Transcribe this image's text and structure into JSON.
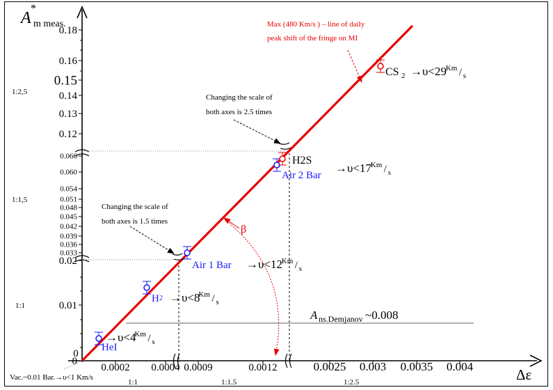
{
  "chart_data": {
    "type": "scatter",
    "title": "",
    "y_axis_label": {
      "main": "A",
      "sup": "*",
      "sub": "m meas."
    },
    "x_axis_label": "Δε",
    "y_ticks": [
      {
        "label": "0",
        "size": "small"
      },
      {
        "label": "0.01",
        "size": "small"
      },
      {
        "label": "0.02",
        "size": "small"
      },
      {
        "label": "0.033",
        "size": "tiny"
      },
      {
        "label": "0.036",
        "size": "tiny"
      },
      {
        "label": "0.039",
        "size": "tiny"
      },
      {
        "label": "0.042",
        "size": "tiny"
      },
      {
        "label": "0.045",
        "size": "tiny"
      },
      {
        "label": "0.048",
        "size": "tiny"
      },
      {
        "label": "0.051",
        "size": "tiny"
      },
      {
        "label": "0.054",
        "size": "tiny"
      },
      {
        "label": "0.060",
        "size": "tiny"
      },
      {
        "label": "0.066",
        "size": "tiny"
      },
      {
        "label": "0.12",
        "size": "small"
      },
      {
        "label": "0.13",
        "size": "small"
      },
      {
        "label": "0.14",
        "size": "small"
      },
      {
        "label": "0.15",
        "size": "large"
      },
      {
        "label": "0.16",
        "size": "small"
      },
      {
        "label": "0.18",
        "size": "small"
      }
    ],
    "x_ticks": [
      "0.0002",
      "0.0004",
      "0.0009",
      "0.0012",
      "0.0025",
      "0.003",
      "0.0035",
      "0.004"
    ],
    "scale_labels_y": [
      "1:2,5",
      "1:1,5",
      "1:1"
    ],
    "scale_labels_x": [
      "1:1",
      "1:1.5",
      "1:2.5"
    ],
    "points": [
      {
        "name": "HeI",
        "label_color": "#1a1aff"
      },
      {
        "name": "H2",
        "label_color": "#1a1aff"
      },
      {
        "name": "Air 1 Bar",
        "label_color": "#1a1aff"
      },
      {
        "name": "Air 2 Bar",
        "label_color": "#1a1aff"
      },
      {
        "name": "H2S",
        "label_color": "#000000"
      },
      {
        "name": "CS2",
        "label_color": "#000000"
      }
    ],
    "velocity_labels": [
      "4",
      "8",
      "12",
      "17",
      "29"
    ],
    "velocity_unit": "Km",
    "velocity_unit_den": "s",
    "line_color": "#e60000",
    "point_color": "#1a1aff"
  },
  "annotations": {
    "max_line_1": "Max (480 Km/s ) – line of daily",
    "max_line_2": "peak shift of the fringe on MI",
    "scale_change_25_1": "Changing the scale of",
    "scale_change_25_2": "both axes is 2.5 times",
    "scale_change_15_1": "Changing the scale of",
    "scale_change_15_2": "both axes is 1.5 times",
    "beta": "β",
    "demjanov_main": "A",
    "demjanov_sub": "ns.Demjanov",
    "demjanov_value": "~0.008",
    "vac_label": "Vac.~0.01 Bar.→υ<1 Km/s",
    "cs2_main": "CS",
    "cs2_sub": "2",
    "h2s_label": "H2S",
    "h2_main": "H",
    "h2_sub": "2"
  }
}
